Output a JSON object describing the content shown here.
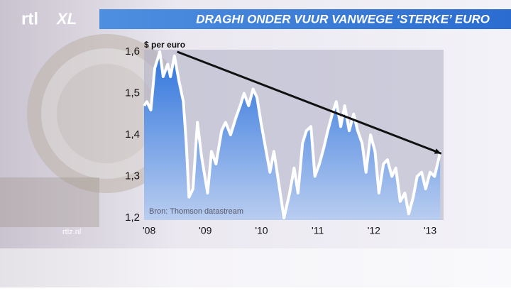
{
  "chart_data": {
    "type": "area",
    "title": "DRAGHI ONDER VUUR VANWEGE ‘STERKE’ EURO",
    "y_label": "$ per euro",
    "source": "Bron: Thomson datastream",
    "x": [
      2007.91,
      2007.96,
      2008.03,
      2008.1,
      2008.19,
      2008.25,
      2008.33,
      2008.38,
      2008.45,
      2008.53,
      2008.61,
      2008.66,
      2008.71,
      2008.78,
      2008.86,
      2008.93,
      2009.04,
      2009.11,
      2009.19,
      2009.29,
      2009.36,
      2009.45,
      2009.54,
      2009.62,
      2009.69,
      2009.77,
      2009.85,
      2009.92,
      2009.99,
      2010.07,
      2010.15,
      2010.22,
      2010.3,
      2010.4,
      2010.5,
      2010.58,
      2010.65,
      2010.73,
      2010.8,
      2010.88,
      2010.95,
      2011.03,
      2011.11,
      2011.18,
      2011.26,
      2011.33,
      2011.41,
      2011.48,
      2011.56,
      2011.64,
      2011.71,
      2011.79,
      2011.86,
      2011.94,
      2012.02,
      2012.09,
      2012.17,
      2012.24,
      2012.32,
      2012.39,
      2012.47,
      2012.55,
      2012.62,
      2012.7,
      2012.77,
      2012.85,
      2012.92,
      2013.0,
      2013.08,
      2013.15,
      2013.18
    ],
    "values": [
      1.47,
      1.48,
      1.46,
      1.56,
      1.6,
      1.54,
      1.57,
      1.54,
      1.59,
      1.53,
      1.48,
      1.38,
      1.25,
      1.27,
      1.43,
      1.35,
      1.26,
      1.36,
      1.33,
      1.41,
      1.43,
      1.4,
      1.44,
      1.47,
      1.5,
      1.47,
      1.51,
      1.49,
      1.43,
      1.37,
      1.31,
      1.36,
      1.29,
      1.2,
      1.26,
      1.32,
      1.26,
      1.38,
      1.41,
      1.42,
      1.3,
      1.33,
      1.37,
      1.41,
      1.45,
      1.48,
      1.42,
      1.47,
      1.41,
      1.45,
      1.41,
      1.38,
      1.31,
      1.4,
      1.36,
      1.26,
      1.33,
      1.34,
      1.3,
      1.32,
      1.24,
      1.26,
      1.21,
      1.25,
      1.3,
      1.31,
      1.27,
      1.31,
      1.3,
      1.34,
      1.36
    ],
    "line_color": "#ffffff",
    "fill_color": "#2f74dc",
    "trend_line": {
      "x": [
        2008.5,
        2013.2
      ],
      "y": [
        1.6,
        1.355
      ],
      "color": "#111111"
    },
    "xlim": [
      2007.91,
      2013.24
    ],
    "ylim": [
      1.195,
      1.605
    ],
    "xticks": [
      {
        "value": 2008,
        "label": "'08"
      },
      {
        "value": 2009,
        "label": "'09"
      },
      {
        "value": 2010,
        "label": "'10"
      },
      {
        "value": 2011,
        "label": "'11"
      },
      {
        "value": 2012,
        "label": "'12"
      },
      {
        "value": 2013,
        "label": "'13"
      }
    ],
    "yticks": [
      {
        "value": 1.2,
        "label": "1,2"
      },
      {
        "value": 1.3,
        "label": "1,3"
      },
      {
        "value": 1.4,
        "label": "1,4"
      },
      {
        "value": 1.5,
        "label": "1,5"
      },
      {
        "value": 1.6,
        "label": "1,6"
      }
    ]
  },
  "branding": {
    "logo_rtl": "rtl",
    "logo_xl": "XL",
    "site": "rtlz.nl"
  }
}
